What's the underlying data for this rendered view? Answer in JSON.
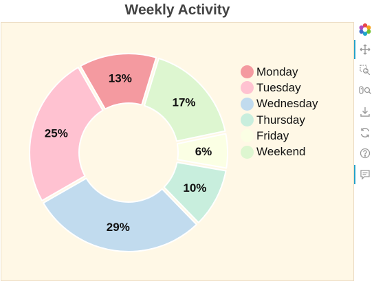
{
  "title": "Weekly Activity",
  "chart_data": {
    "type": "pie",
    "subtype": "donut",
    "title": "Weekly Activity",
    "categories": [
      "Monday",
      "Tuesday",
      "Wednesday",
      "Thursday",
      "Friday",
      "Weekend"
    ],
    "values": [
      13,
      25,
      29,
      10,
      6,
      17
    ],
    "labels": [
      "13%",
      "25%",
      "29%",
      "10%",
      "6%",
      "17%"
    ],
    "order_drawn": [
      "Monday",
      "Tuesday",
      "Wednesday",
      "Thursday",
      "Friday",
      "Weekend"
    ],
    "direction": "counterclockwise",
    "colors": [
      "#f49aa0",
      "#ffc2d1",
      "#c1dbee",
      "#c8eedd",
      "#fbffe4",
      "#ddf6d0"
    ],
    "legend": "right",
    "grid": false
  },
  "colors": {
    "plot_background": "#fff8e6",
    "plot_border": "#ecdcc4",
    "title_text": "#444444",
    "toolbar_icon": "#9a9a9a",
    "toolbar_active": "#26a3c8"
  },
  "toolbar": {
    "icons": [
      "bokeh-logo-icon",
      "pan-icon",
      "box-zoom-icon",
      "wheel-zoom-icon",
      "save-icon",
      "reset-icon",
      "help-icon",
      "hover-icon"
    ]
  }
}
